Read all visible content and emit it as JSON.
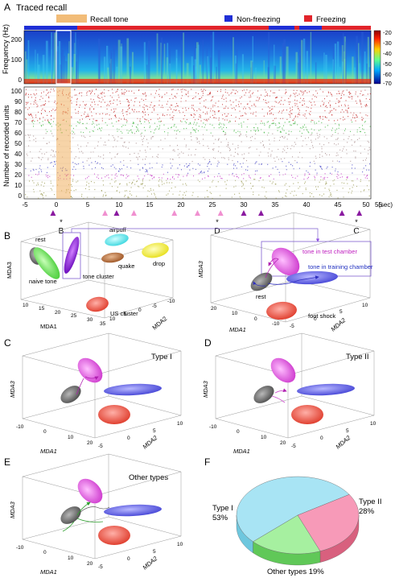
{
  "panelA": {
    "letter": "A",
    "title": "Traced recall",
    "legend": {
      "recall_tone": "Recall tone",
      "non_freezing": "Non-freezing",
      "freezing": "Freezing"
    },
    "colors": {
      "non_freezing": "#1f2fd6",
      "freezing": "#e2242b",
      "tone": "#f0b060"
    },
    "spectrogram": {
      "ylabel": "Frequency (Hz)",
      "yticks": [
        "200",
        "100",
        "0"
      ],
      "colorbar_ticks": [
        "-20",
        "-30",
        "-40",
        "-50",
        "-60",
        "-70"
      ]
    },
    "raster": {
      "ylabel": "Number of recorded units",
      "yticks": [
        "100",
        "90",
        "80",
        "70",
        "60",
        "50",
        "40",
        "30",
        "20",
        "10",
        "0"
      ]
    },
    "xaxis": {
      "ticks": [
        "-5",
        "0",
        "5",
        "10",
        "15",
        "20",
        "25",
        "30",
        "35",
        "40",
        "45",
        "50",
        "55"
      ],
      "unit": "(sec)"
    },
    "markers": {
      "times": [
        0,
        9,
        11,
        14,
        21,
        25,
        29,
        33,
        36,
        50,
        53
      ],
      "kinds": [
        "dark",
        "light",
        "dark",
        "light",
        "light",
        "light",
        "light",
        "dark",
        "dark",
        "dark",
        "dark"
      ],
      "labels": {
        "B": "B",
        "D": "D",
        "C": "C"
      },
      "star": "*"
    }
  },
  "panelB": {
    "letter": "B",
    "left": {
      "labels": {
        "rest": "rest",
        "naive_tone": "naive tone",
        "tone_cluster": "tone cluster",
        "airpuff": "airpuff",
        "quake": "quake",
        "drop": "drop",
        "us_cluster": "US cluster"
      },
      "axes": {
        "x": "MDA1",
        "y": "MDA2",
        "z": "MDA3"
      },
      "xticks": [
        "10",
        "15",
        "20",
        "25",
        "30",
        "35"
      ],
      "yticks": [
        "-10",
        "-5",
        "0",
        "5",
        "10"
      ]
    },
    "right": {
      "labels": {
        "tone_test": "tone in test chamber",
        "tone_training": "tone in training chamber",
        "rest": "rest",
        "foot_shock": "foot shock"
      },
      "axes": {
        "x": "MDA1",
        "y": "MDA2",
        "z": "MDA3"
      },
      "xticks": [
        "20",
        "10",
        "0",
        "-10"
      ],
      "yticks": [
        "-5",
        "0",
        "5",
        "10"
      ]
    }
  },
  "panelC": {
    "letter": "C",
    "type_label": "Type I",
    "axes": {
      "x": "MDA1",
      "y": "MDA2",
      "z": "MDA3"
    },
    "xticks": [
      "-10",
      "0",
      "10",
      "20"
    ],
    "yticks": [
      "-5",
      "0",
      "5",
      "10"
    ]
  },
  "panelD": {
    "letter": "D",
    "type_label": "Type II",
    "axes": {
      "x": "MDA1",
      "y": "MDA2",
      "z": "MDA3"
    },
    "xticks": [
      "-10",
      "0",
      "10",
      "20"
    ],
    "yticks": [
      "-5",
      "0",
      "5",
      "10"
    ]
  },
  "panelE": {
    "letter": "E",
    "type_label": "Other types",
    "axes": {
      "x": "MDA1",
      "y": "MDA2",
      "z": "MDA3"
    },
    "xticks": [
      "-10",
      "0",
      "10",
      "20"
    ],
    "yticks": [
      "-5",
      "0",
      "5",
      "10"
    ]
  },
  "panelF": {
    "letter": "F",
    "type1": "Type I",
    "type1_pct": "53%",
    "type2": "Type II",
    "type2_pct": "28%",
    "other": "Other types 19%"
  },
  "chart_data": {
    "type": "pie",
    "categories": [
      "Type I",
      "Type II",
      "Other types"
    ],
    "values": [
      53,
      28,
      19
    ],
    "colors": [
      "#a8e4f4",
      "#f79ab8",
      "#a6f0a0"
    ]
  }
}
